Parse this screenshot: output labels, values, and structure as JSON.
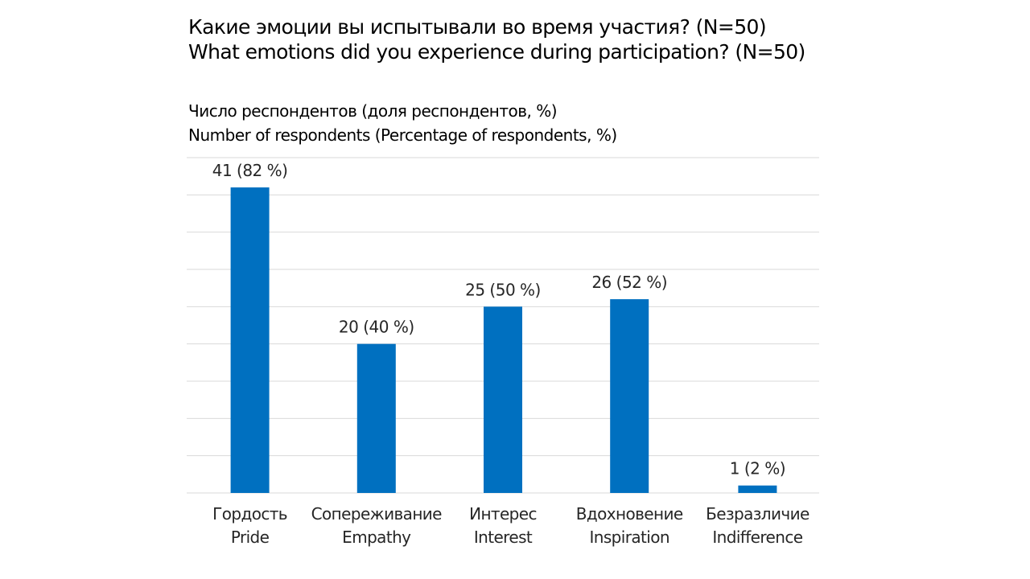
{
  "chart_data": {
    "type": "bar",
    "title": [
      "Какие эмоции вы испытывали во время участия? (N=50)",
      "What emotions did you experience during participation? (N=50)"
    ],
    "ylabel": [
      "Число респондентов (доля респондентов, %)",
      "Number of respondents (Percentage of respondents, %)"
    ],
    "xlabel": "",
    "categories": [
      [
        "Гордость",
        "Pride"
      ],
      [
        "Сопереживание",
        "Empathy"
      ],
      [
        "Интерес",
        "Interest"
      ],
      [
        "Вдохновение",
        "Inspiration"
      ],
      [
        "Безразличие",
        "Indifference"
      ]
    ],
    "values": [
      41,
      20,
      25,
      26,
      1
    ],
    "data_labels": [
      "41 (82 %)",
      "20 (40 %)",
      "25 (50 %)",
      "26 (52 %)",
      "1 (2 %)"
    ],
    "ylim": [
      0,
      45
    ],
    "grid_step": 5,
    "grid": true,
    "bar_color": "#0070C0",
    "grid_color": "#D9D9D9"
  }
}
